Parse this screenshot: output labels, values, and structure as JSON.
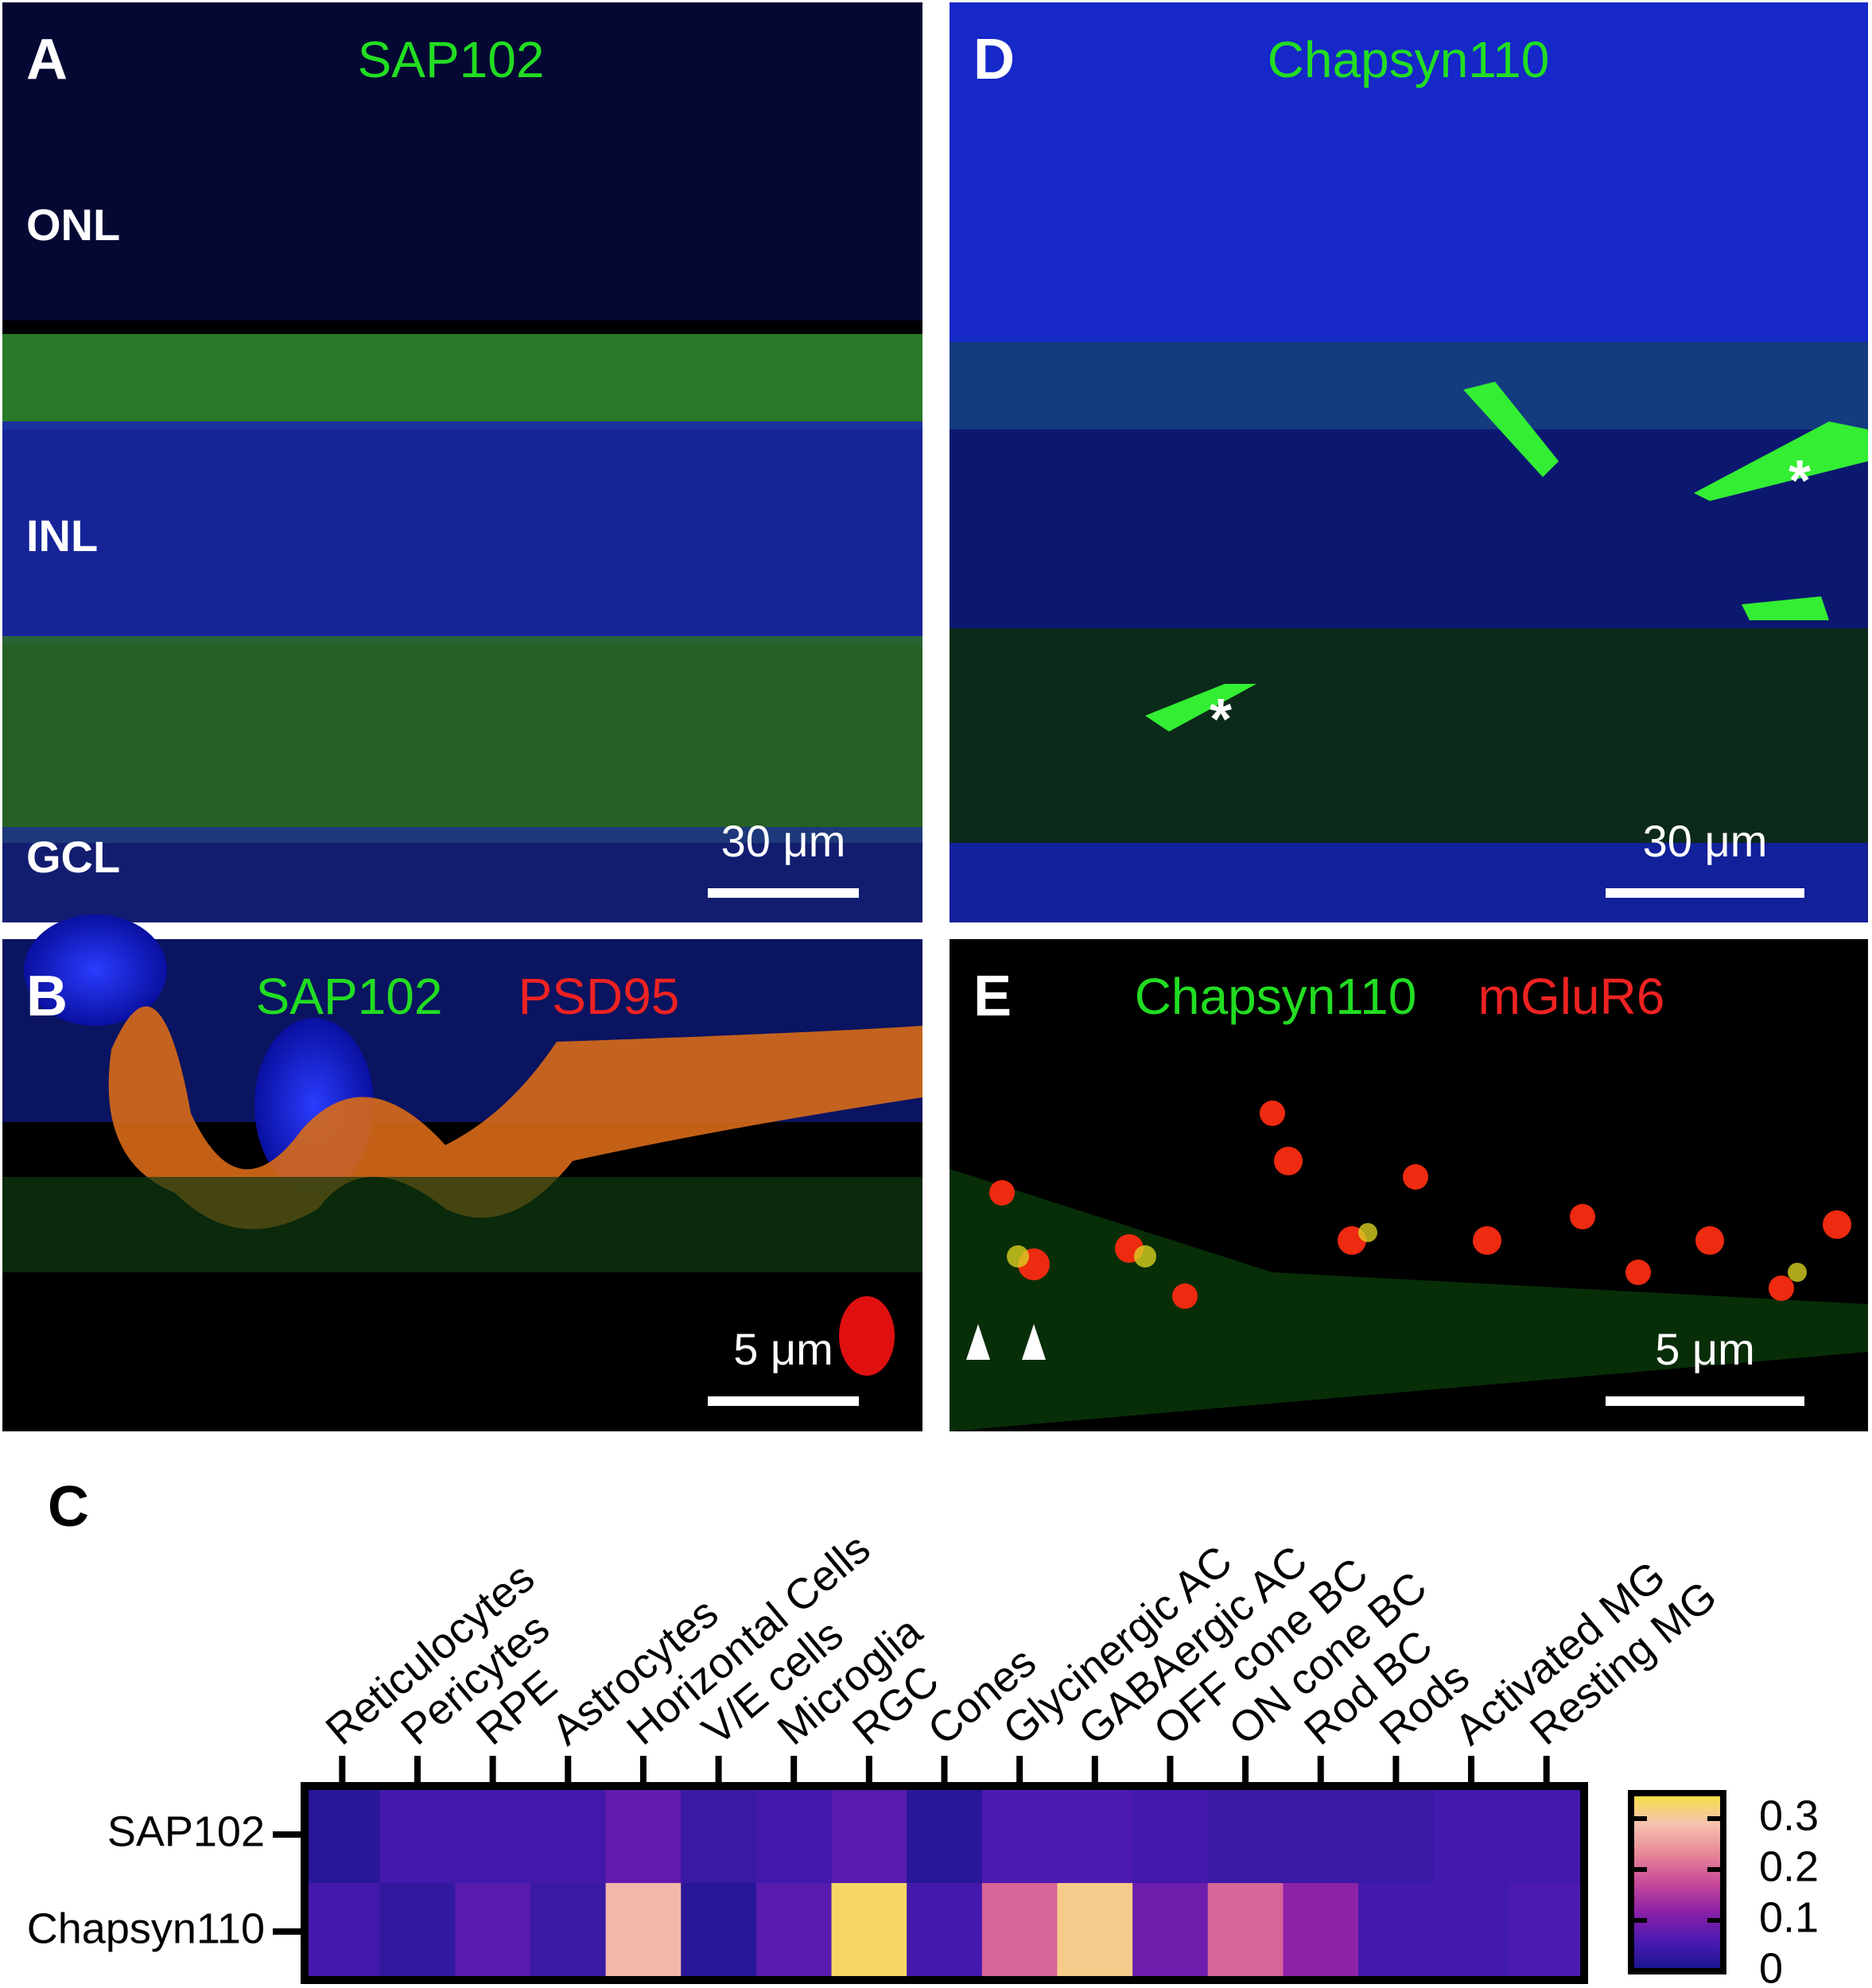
{
  "panels": [
    {
      "letter": "A",
      "titles": [
        {
          "text": "SAP102",
          "color": "#22dd22"
        }
      ],
      "layer_labels": [
        "ONL",
        "INL",
        "GCL"
      ],
      "scale_bar": "30 μm"
    },
    {
      "letter": "D",
      "titles": [
        {
          "text": "Chapsyn110",
          "color": "#22dd22"
        }
      ],
      "scale_bar": "30 μm"
    },
    {
      "letter": "B",
      "titles": [
        {
          "text": "SAP102",
          "color": "#22dd22"
        },
        {
          "text": "PSD95",
          "color": "#ee2222"
        }
      ],
      "scale_bar": "5 μm"
    },
    {
      "letter": "E",
      "titles": [
        {
          "text": "Chapsyn110",
          "color": "#22dd22"
        },
        {
          "text": "mGluR6",
          "color": "#ee2222"
        }
      ],
      "scale_bar": "5 μm"
    }
  ],
  "chart_data": {
    "type": "heatmap",
    "panel_label": "C",
    "categories": [
      "Reticulocytes",
      "Pericytes",
      "RPE",
      "Astrocytes",
      "Horizontal Cells",
      "V/E cells",
      "Microglia",
      "RGC",
      "Cones",
      "Glycinergic AC",
      "GABAergic AC",
      "OFF cone BC",
      "ON cone BC",
      "Rod BC",
      "Rods",
      "Activated MG",
      "Resting MG"
    ],
    "series": [
      {
        "name": "SAP102",
        "values": [
          0.02,
          0.05,
          0.05,
          0.05,
          0.08,
          0.04,
          0.05,
          0.07,
          0.02,
          0.06,
          0.06,
          0.05,
          0.04,
          0.04,
          0.04,
          0.05,
          0.05
        ]
      },
      {
        "name": "Chapsyn110",
        "values": [
          0.05,
          0.03,
          0.07,
          0.04,
          0.28,
          0.02,
          0.07,
          0.33,
          0.05,
          0.2,
          0.31,
          0.09,
          0.2,
          0.12,
          0.05,
          0.05,
          0.06
        ]
      }
    ],
    "colormap": [
      "#16168c",
      "#4a1ab0",
      "#8a20a8",
      "#c84a98",
      "#e88a98",
      "#f6c2b0",
      "#f6e23e"
    ],
    "zlim": [
      0,
      0.35
    ],
    "zticks": [
      0,
      0.1,
      0.2,
      0.3
    ]
  }
}
